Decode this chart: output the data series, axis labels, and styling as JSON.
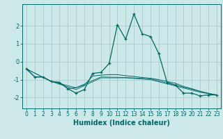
{
  "xlabel": "Humidex (Indice chaleur)",
  "bg_color": "#cce8e8",
  "grid_color": "#aacccc",
  "line_color": "#006666",
  "xlim": [
    -0.5,
    23.5
  ],
  "ylim": [
    -2.6,
    3.2
  ],
  "yticks": [
    -2,
    -1,
    0,
    1,
    2
  ],
  "xticks": [
    0,
    1,
    2,
    3,
    4,
    5,
    6,
    7,
    8,
    9,
    10,
    11,
    12,
    13,
    14,
    15,
    16,
    17,
    18,
    19,
    20,
    21,
    22,
    23
  ],
  "series1": [
    [
      0,
      -0.4
    ],
    [
      1,
      -0.85
    ],
    [
      2,
      -0.85
    ],
    [
      3,
      -1.1
    ],
    [
      4,
      -1.15
    ],
    [
      5,
      -1.5
    ],
    [
      6,
      -1.75
    ],
    [
      7,
      -1.55
    ],
    [
      8,
      -0.65
    ],
    [
      9,
      -0.6
    ],
    [
      10,
      -0.1
    ],
    [
      11,
      2.05
    ],
    [
      12,
      1.25
    ],
    [
      13,
      2.65
    ],
    [
      14,
      1.55
    ],
    [
      15,
      1.4
    ],
    [
      16,
      0.45
    ],
    [
      17,
      -1.15
    ],
    [
      18,
      -1.3
    ],
    [
      19,
      -1.75
    ],
    [
      20,
      -1.75
    ],
    [
      21,
      -1.9
    ],
    [
      22,
      -1.85
    ],
    [
      23,
      -1.85
    ]
  ],
  "series2": [
    [
      0,
      -0.4
    ],
    [
      1,
      -0.85
    ],
    [
      2,
      -0.85
    ],
    [
      3,
      -1.1
    ],
    [
      4,
      -1.15
    ],
    [
      5,
      -1.5
    ],
    [
      6,
      -1.45
    ],
    [
      7,
      -1.3
    ],
    [
      8,
      -0.8
    ],
    [
      9,
      -0.75
    ],
    [
      10,
      -0.72
    ],
    [
      11,
      -0.72
    ],
    [
      12,
      -0.78
    ],
    [
      13,
      -0.82
    ],
    [
      14,
      -0.88
    ],
    [
      15,
      -0.92
    ],
    [
      16,
      -1.0
    ],
    [
      17,
      -1.1
    ],
    [
      18,
      -1.2
    ],
    [
      19,
      -1.38
    ],
    [
      20,
      -1.5
    ],
    [
      21,
      -1.65
    ],
    [
      22,
      -1.78
    ],
    [
      23,
      -1.85
    ]
  ],
  "series3": [
    [
      0,
      -0.4
    ],
    [
      3,
      -1.1
    ],
    [
      6,
      -1.55
    ],
    [
      9,
      -0.9
    ],
    [
      12,
      -0.9
    ],
    [
      15,
      -1.0
    ],
    [
      18,
      -1.35
    ],
    [
      21,
      -1.7
    ],
    [
      23,
      -1.85
    ]
  ],
  "series4": [
    [
      0,
      -0.4
    ],
    [
      3,
      -1.1
    ],
    [
      6,
      -1.45
    ],
    [
      9,
      -0.85
    ],
    [
      12,
      -0.88
    ],
    [
      15,
      -0.95
    ],
    [
      18,
      -1.3
    ],
    [
      21,
      -1.65
    ],
    [
      23,
      -1.85
    ]
  ]
}
